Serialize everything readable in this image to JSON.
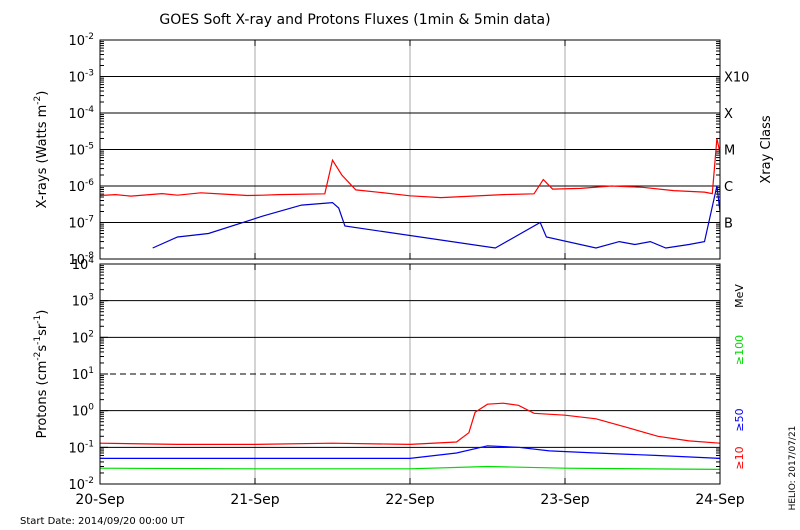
{
  "title": "GOES Soft X-ray and Protons Fluxes   (1min & 5min data)",
  "start_date": "Start Date: 2014/09/20 00:00 UT",
  "side_stamp": "HELIO: 2017/07/21",
  "colors": {
    "xray_long": "#ff0000",
    "xray_short": "#0000cc",
    "p10": "#ff0000",
    "p50": "#0000ff",
    "p100": "#00dd00"
  },
  "chart_data": [
    {
      "type": "line",
      "panel": "xray",
      "ylabel_parts": [
        "X-rays (Watts m",
        "-2",
        ")"
      ],
      "yscale": "log",
      "ylim": [
        1e-08,
        0.01
      ],
      "yticks": [
        {
          "value": 0.01,
          "base": "10",
          "exp": "-2"
        },
        {
          "value": 0.001,
          "base": "10",
          "exp": "-3"
        },
        {
          "value": 0.0001,
          "base": "10",
          "exp": "-4"
        },
        {
          "value": 1e-05,
          "base": "10",
          "exp": "-5"
        },
        {
          "value": 1e-06,
          "base": "10",
          "exp": "-6"
        },
        {
          "value": 1e-07,
          "base": "10",
          "exp": "-7"
        },
        {
          "value": 1e-08,
          "base": "10",
          "exp": "-8"
        }
      ],
      "right_axis_title": "Xray Class",
      "classes": [
        {
          "label": "X10",
          "value": 0.001
        },
        {
          "label": "X",
          "value": 0.0001
        },
        {
          "label": "M",
          "value": 1e-05
        },
        {
          "label": "C",
          "value": 1e-06
        },
        {
          "label": "B",
          "value": 1e-07
        }
      ],
      "hlines": [
        0.001,
        0.0001,
        1e-05,
        1e-06,
        1e-07
      ],
      "series": [
        {
          "key": "long",
          "color": "#ff0000",
          "points": [
            [
              0.0,
              5.5e-07
            ],
            [
              0.1,
              5.8e-07
            ],
            [
              0.2,
              5.3e-07
            ],
            [
              0.4,
              6.2e-07
            ],
            [
              0.5,
              5.6e-07
            ],
            [
              0.65,
              6.5e-07
            ],
            [
              0.8,
              6e-07
            ],
            [
              0.95,
              5.5e-07
            ],
            [
              1.05,
              5.6e-07
            ],
            [
              1.15,
              5.8e-07
            ],
            [
              1.25,
              5.9e-07
            ],
            [
              1.45,
              6.1e-07
            ],
            [
              1.5,
              5.1e-06
            ],
            [
              1.56,
              2e-06
            ],
            [
              1.65,
              7.8e-07
            ],
            [
              1.8,
              6.7e-07
            ],
            [
              2.0,
              5.4e-07
            ],
            [
              2.2,
              4.8e-07
            ],
            [
              2.4,
              5.3e-07
            ],
            [
              2.6,
              5.8e-07
            ],
            [
              2.8,
              6.1e-07
            ],
            [
              2.86,
              1.5e-06
            ],
            [
              2.92,
              8.2e-07
            ],
            [
              3.1,
              8.6e-07
            ],
            [
              3.3,
              1e-06
            ],
            [
              3.5,
              9.2e-07
            ],
            [
              3.7,
              7.5e-07
            ],
            [
              3.9,
              6.8e-07
            ],
            [
              3.95,
              6.2e-07
            ],
            [
              3.98,
              2e-05
            ],
            [
              4.0,
              8e-06
            ]
          ]
        },
        {
          "key": "short",
          "color": "#0000cc",
          "points": [
            [
              0.34,
              2e-08
            ],
            [
              0.5,
              4e-08
            ],
            [
              0.7,
              5e-08
            ],
            [
              1.05,
              1.5e-07
            ],
            [
              1.3,
              3e-07
            ],
            [
              1.5,
              3.5e-07
            ],
            [
              1.54,
              2.5e-07
            ],
            [
              1.58,
              8e-08
            ],
            [
              2.55,
              2e-08
            ],
            [
              2.84,
              1e-07
            ],
            [
              2.88,
              4e-08
            ],
            [
              3.2,
              2e-08
            ],
            [
              3.35,
              3e-08
            ],
            [
              3.45,
              2.5e-08
            ],
            [
              3.55,
              3e-08
            ],
            [
              3.65,
              2e-08
            ],
            [
              3.8,
              2.5e-08
            ],
            [
              3.9,
              3e-08
            ],
            [
              3.98,
              1e-06
            ],
            [
              4.0,
              2e-07
            ]
          ]
        }
      ]
    },
    {
      "type": "line",
      "panel": "protons",
      "ylabel_parts": [
        "Protons (cm",
        "-2",
        "s",
        "-1",
        "sr",
        "-1",
        ")"
      ],
      "yscale": "log",
      "ylim": [
        0.01,
        10000
      ],
      "yticks": [
        {
          "value": 10000,
          "base": "10",
          "exp": "4"
        },
        {
          "value": 1000,
          "base": "10",
          "exp": "3"
        },
        {
          "value": 100,
          "base": "10",
          "exp": "2"
        },
        {
          "value": 10,
          "base": "10",
          "exp": "1"
        },
        {
          "value": 1,
          "base": "10",
          "exp": "0"
        },
        {
          "value": 0.1,
          "base": "10",
          "exp": "-1"
        },
        {
          "value": 0.01,
          "base": "10",
          "exp": "-2"
        }
      ],
      "hlines": [
        1000,
        100,
        10,
        1,
        0.1
      ],
      "dashed_line": 10,
      "right_labels": [
        {
          "text": "MeV",
          "color": "#000000"
        },
        {
          "text": "≥100",
          "color": "#00dd00"
        },
        {
          "text": "≥50",
          "color": "#0000ff"
        },
        {
          "text": "≥10",
          "color": "#ff0000"
        }
      ],
      "series": [
        {
          "key": "p10",
          "color": "#ff0000",
          "points": [
            [
              0.0,
              0.13
            ],
            [
              0.5,
              0.12
            ],
            [
              1.0,
              0.12
            ],
            [
              1.5,
              0.13
            ],
            [
              2.0,
              0.12
            ],
            [
              2.3,
              0.14
            ],
            [
              2.38,
              0.25
            ],
            [
              2.42,
              0.9
            ],
            [
              2.5,
              1.5
            ],
            [
              2.6,
              1.6
            ],
            [
              2.7,
              1.4
            ],
            [
              2.8,
              0.85
            ],
            [
              3.0,
              0.75
            ],
            [
              3.2,
              0.6
            ],
            [
              3.4,
              0.35
            ],
            [
              3.6,
              0.2
            ],
            [
              3.8,
              0.15
            ],
            [
              4.0,
              0.13
            ]
          ]
        },
        {
          "key": "p50",
          "color": "#0000ff",
          "points": [
            [
              0.0,
              0.05
            ],
            [
              1.0,
              0.05
            ],
            [
              2.0,
              0.05
            ],
            [
              2.3,
              0.07
            ],
            [
              2.5,
              0.11
            ],
            [
              2.7,
              0.1
            ],
            [
              2.9,
              0.08
            ],
            [
              3.2,
              0.07
            ],
            [
              3.6,
              0.06
            ],
            [
              4.0,
              0.05
            ]
          ]
        },
        {
          "key": "p100",
          "color": "#00dd00",
          "points": [
            [
              0.0,
              0.027
            ],
            [
              1.0,
              0.026
            ],
            [
              2.0,
              0.026
            ],
            [
              2.5,
              0.03
            ],
            [
              3.0,
              0.027
            ],
            [
              4.0,
              0.025
            ]
          ]
        }
      ]
    }
  ],
  "x_axis": {
    "range": [
      0,
      4
    ],
    "ticks": [
      {
        "value": 0,
        "label": "20-Sep"
      },
      {
        "value": 1,
        "label": "21-Sep"
      },
      {
        "value": 2,
        "label": "22-Sep"
      },
      {
        "value": 3,
        "label": "23-Sep"
      },
      {
        "value": 4,
        "label": "24-Sep"
      }
    ]
  }
}
